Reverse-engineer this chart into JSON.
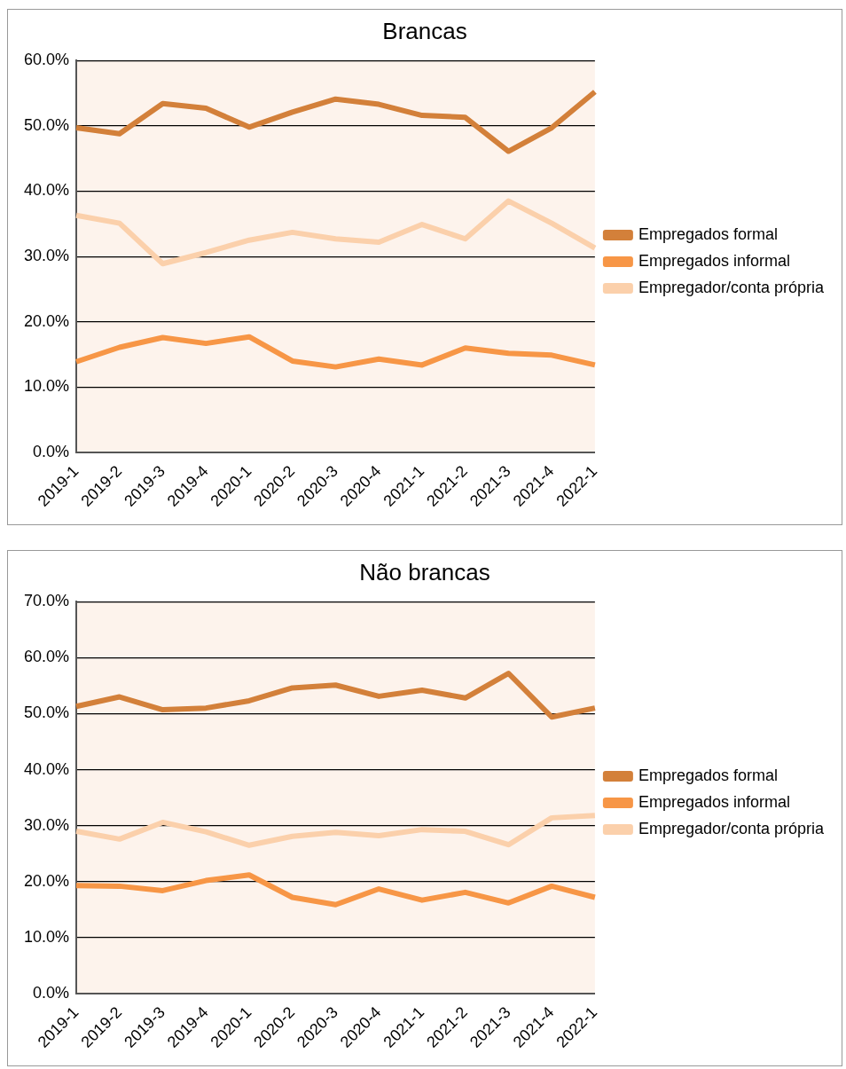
{
  "chart_data": [
    {
      "type": "line",
      "title": "Brancas",
      "categories": [
        "2019-1",
        "2019-2",
        "2019-3",
        "2019-4",
        "2020-1",
        "2020-2",
        "2020-3",
        "2020-4",
        "2021-1",
        "2021-2",
        "2021-3",
        "2021-4",
        "2022-1"
      ],
      "series": [
        {
          "name": "Empregados formal",
          "color": "#d3803a",
          "values": [
            49.7,
            48.8,
            53.4,
            52.7,
            49.8,
            52.1,
            54.1,
            53.3,
            51.6,
            51.3,
            46.1,
            49.7,
            55.2
          ]
        },
        {
          "name": "Empregados informal",
          "color": "#f79646",
          "values": [
            13.9,
            16.1,
            17.6,
            16.7,
            17.7,
            14.0,
            13.1,
            14.3,
            13.4,
            16.0,
            15.2,
            14.9,
            13.4
          ]
        },
        {
          "name": "Empregador/conta própria",
          "color": "#fbd0ab",
          "values": [
            36.3,
            35.1,
            28.9,
            30.6,
            32.5,
            33.7,
            32.7,
            32.2,
            34.9,
            32.7,
            38.5,
            35.1,
            31.3
          ]
        }
      ],
      "ylim": [
        0,
        60
      ],
      "yticks": [
        {
          "value": 0,
          "label": "0.0%"
        },
        {
          "value": 10,
          "label": "10.0%"
        },
        {
          "value": 20,
          "label": "20.0%"
        },
        {
          "value": 30,
          "label": "30.0%"
        },
        {
          "value": 40,
          "label": "40.0%"
        },
        {
          "value": 50,
          "label": "50.0%"
        },
        {
          "value": 60,
          "label": "60.0%"
        }
      ],
      "grid": "y",
      "legend": "right",
      "marker": "none"
    },
    {
      "type": "line",
      "title": "Não brancas",
      "categories": [
        "2019-1",
        "2019-2",
        "2019-3",
        "2019-4",
        "2020-1",
        "2020-2",
        "2020-3",
        "2020-4",
        "2021-1",
        "2021-2",
        "2021-3",
        "2021-4",
        "2022-1"
      ],
      "series": [
        {
          "name": "Empregados formal",
          "color": "#d3803a",
          "values": [
            51.3,
            53.0,
            50.7,
            51.0,
            52.3,
            54.6,
            55.1,
            53.1,
            54.2,
            52.8,
            57.2,
            49.4,
            51.0
          ]
        },
        {
          "name": "Empregados informal",
          "color": "#f79646",
          "values": [
            19.3,
            19.2,
            18.4,
            20.2,
            21.2,
            17.2,
            15.9,
            18.7,
            16.7,
            18.1,
            16.2,
            19.2,
            17.2
          ]
        },
        {
          "name": "Empregador/conta própria",
          "color": "#fbd0ab",
          "values": [
            29.0,
            27.6,
            30.6,
            28.9,
            26.5,
            28.1,
            28.8,
            28.2,
            29.3,
            29.0,
            26.6,
            31.4,
            31.8
          ]
        }
      ],
      "ylim": [
        0,
        70
      ],
      "yticks": [
        {
          "value": 0,
          "label": "0.0%"
        },
        {
          "value": 10,
          "label": "10.0%"
        },
        {
          "value": 20,
          "label": "20.0%"
        },
        {
          "value": 30,
          "label": "30.0%"
        },
        {
          "value": 40,
          "label": "40.0%"
        },
        {
          "value": 50,
          "label": "50.0%"
        },
        {
          "value": 60,
          "label": "60.0%"
        },
        {
          "value": 70,
          "label": "70.0%"
        }
      ],
      "grid": "y",
      "legend": "right",
      "marker": "none"
    }
  ]
}
